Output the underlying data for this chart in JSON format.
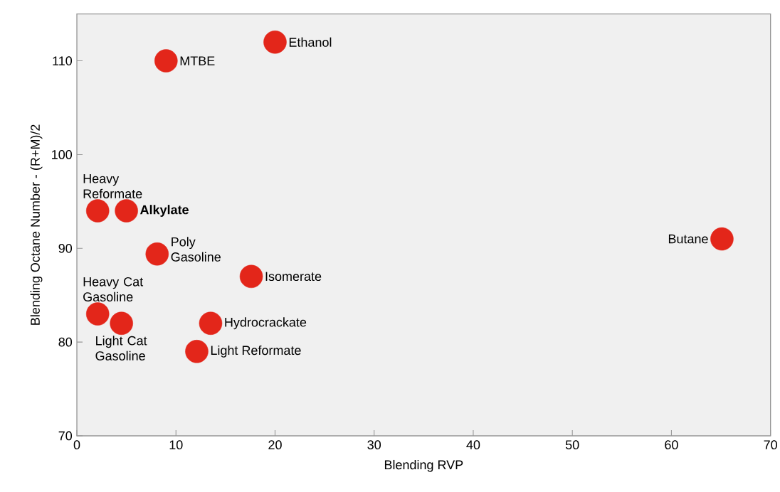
{
  "chart_data": {
    "type": "scatter",
    "xlabel": "Blending RVP",
    "ylabel": "Blending Octane Number - (R+M)/2",
    "color": "#e3261a",
    "x": [
      20,
      9,
      2.1,
      5,
      8.1,
      65.1,
      17.6,
      2.1,
      4.5,
      13.5,
      12.1
    ],
    "values": [
      112,
      110,
      94,
      94,
      89.4,
      91,
      87,
      83,
      82,
      82,
      79
    ],
    "xlim": [
      0,
      70
    ],
    "ylim": [
      70,
      115
    ],
    "xticks": [
      0,
      10,
      20,
      30,
      40,
      50,
      60,
      70
    ],
    "yticks": [
      70,
      80,
      90,
      100,
      110
    ],
    "annotations": [
      {
        "text": "Ethanol",
        "x": 20,
        "y": 112
      },
      {
        "text": "MTBE",
        "x": 9,
        "y": 110
      },
      {
        "text": "Heavy Reformate",
        "x": 2.1,
        "y": 94
      },
      {
        "text": "**Alkylate**",
        "x": 5,
        "y": 94
      },
      {
        "text": "Poly Gasoline",
        "x": 8.1,
        "y": 89.4
      },
      {
        "text": "Butane",
        "x": 65.1,
        "y": 91
      },
      {
        "text": "Isomerate",
        "x": 17.6,
        "y": 87
      },
      {
        "text": "Heavy Cat Gasoline",
        "x": 2.1,
        "y": 83
      },
      {
        "text": "Light Cat Gasoline",
        "x": 4.5,
        "y": 82
      },
      {
        "text": "Hydrocrackate",
        "x": 13.5,
        "y": 82
      },
      {
        "text": "Light Reformate",
        "x": 12.1,
        "y": 79
      }
    ]
  }
}
